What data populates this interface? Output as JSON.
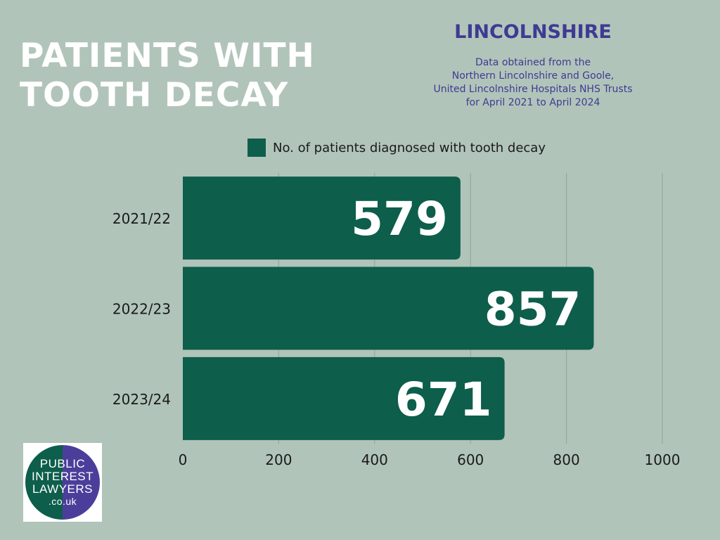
{
  "header": {
    "title_lines": [
      "PATIENTS WITH",
      "TOOTH DECAY"
    ],
    "region": "LINCOLNSHIRE",
    "source_lines": [
      "Data obtained from the",
      "Northern Lincolnshire and Goole,",
      "United Lincolnshire Hospitals NHS Trusts",
      "for April 2021 to April 2024"
    ]
  },
  "logo": {
    "lines": [
      "PUBLIC",
      "INTEREST",
      "LAWYERS",
      ".co.uk"
    ],
    "colors": [
      "#0d5e4b",
      "#4b3e9a"
    ]
  },
  "colors": {
    "bar": "#0d5e4b",
    "background": "#b1c4b9",
    "heading": "#3f3a94"
  },
  "chart_data": {
    "type": "bar",
    "orientation": "horizontal",
    "categories": [
      "2021/22",
      "2022/23",
      "2023/24"
    ],
    "series": [
      {
        "name": "No. of patients diagnosed with tooth decay",
        "values": [
          579,
          857,
          671
        ]
      }
    ],
    "title": "PATIENTS WITH TOOTH DECAY",
    "xlabel": "",
    "ylabel": "",
    "xlim": [
      0,
      1000
    ],
    "xticks": [
      "0",
      "200",
      "400",
      "600",
      "800",
      "1000"
    ],
    "grid": true,
    "legend": "top",
    "data_labels": true
  }
}
